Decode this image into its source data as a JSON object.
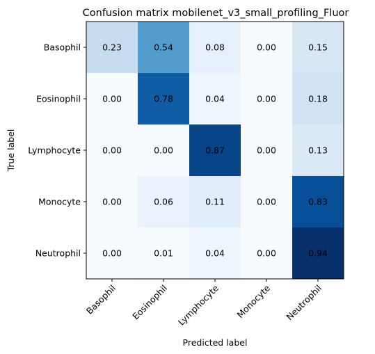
{
  "chart_data": {
    "type": "heatmap",
    "title": "Confusion matrix mobilenet_v3_small_profiling_Fluor",
    "xlabel": "Predicted label",
    "ylabel": "True label",
    "x_categories": [
      "Basophil",
      "Eosinophil",
      "Lymphocyte",
      "Monocyte",
      "Neutrophil"
    ],
    "y_categories": [
      "Basophil",
      "Eosinophil",
      "Lymphocyte",
      "Monocyte",
      "Neutrophil"
    ],
    "values": [
      [
        0.23,
        0.54,
        0.08,
        0.0,
        0.15
      ],
      [
        0.0,
        0.78,
        0.04,
        0.0,
        0.18
      ],
      [
        0.0,
        0.0,
        0.87,
        0.0,
        0.13
      ],
      [
        0.0,
        0.06,
        0.11,
        0.0,
        0.83
      ],
      [
        0.0,
        0.01,
        0.04,
        0.0,
        0.94
      ]
    ],
    "colormap": "Blues",
    "value_range": [
      0,
      0.94
    ],
    "text_color_light": "#ffffff",
    "text_color_dark": "#000000"
  }
}
